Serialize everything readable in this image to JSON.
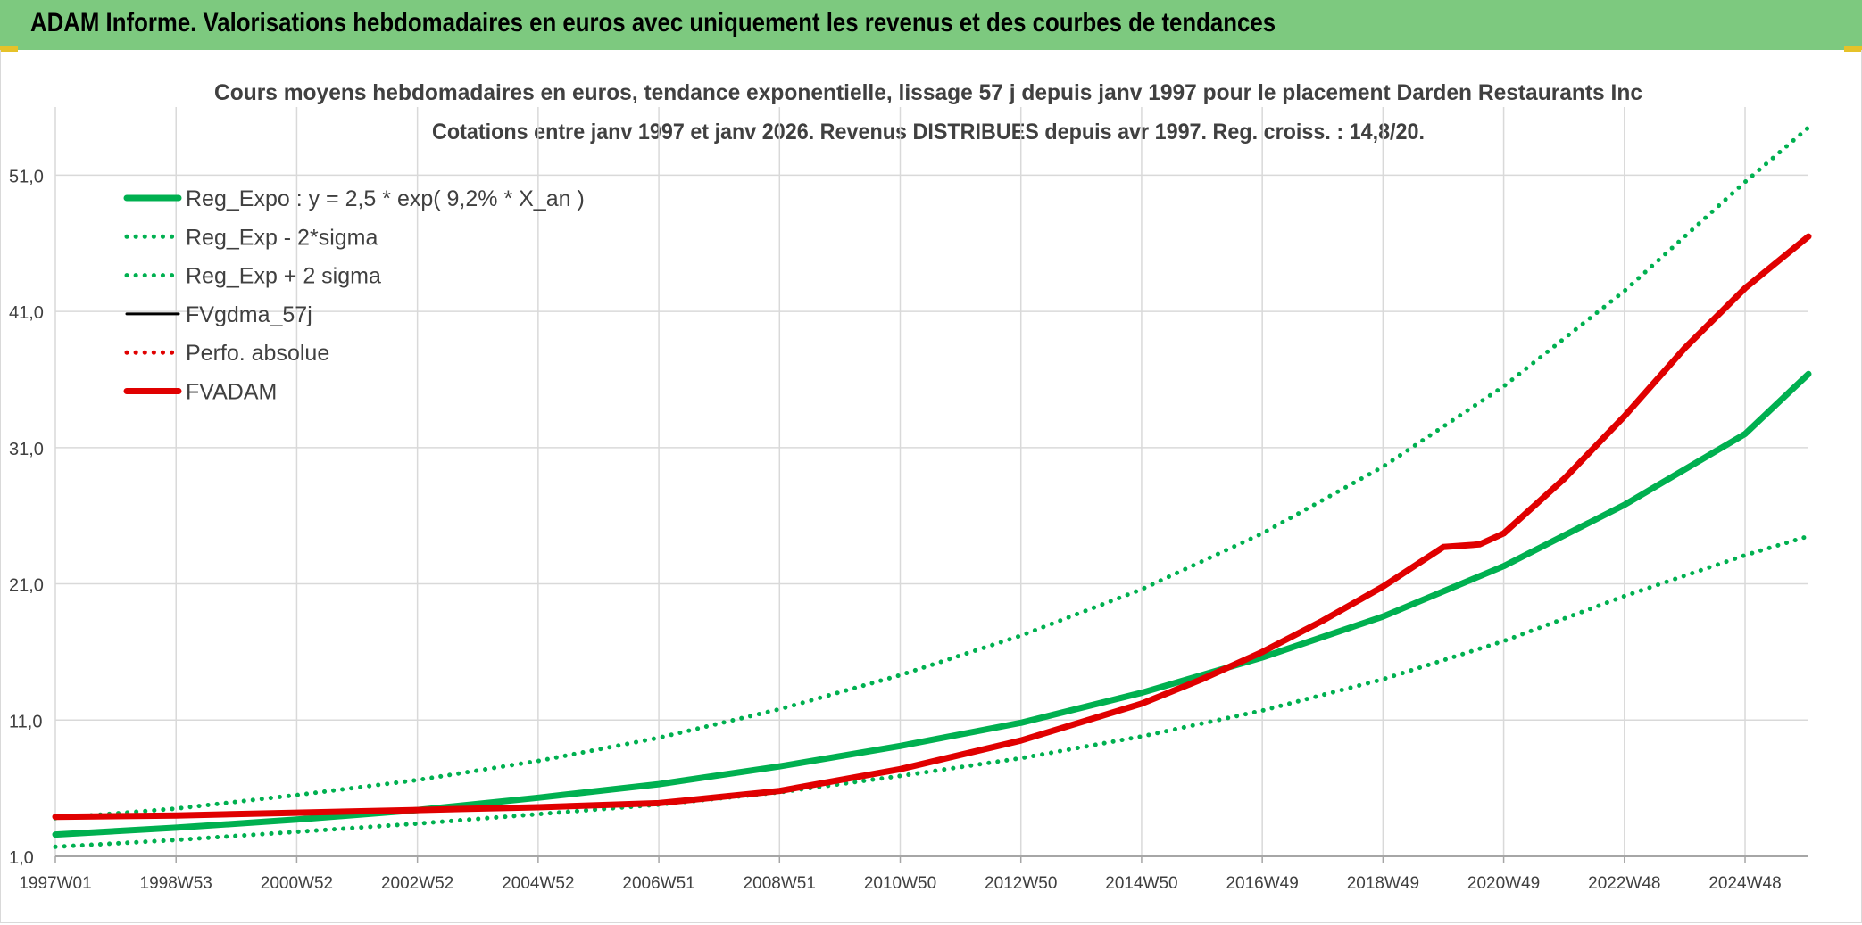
{
  "header": {
    "title": "ADAM Informe. Valorisations hebdomadaires en euros avec uniquement les revenus et des courbes de tendances"
  },
  "colors": {
    "banner": "#7dc97f",
    "reg_expo": "#00b050",
    "fvgdma": "#000000",
    "perf_absolue": "#e00000",
    "fvadam": "#e00000",
    "grid": "#d9d9d9"
  },
  "chart_data": {
    "type": "line",
    "title": "Cours moyens hebdomadaires en euros, tendance exponentielle, lissage 57 j depuis janv 1997 pour le placement Darden Restaurants Inc",
    "subtitle": "Cotations entre janv 1997 et janv 2026. Revenus DISTRIBUES depuis avr 1997. Reg. croiss. : 14,8/20.",
    "xlabel": "",
    "ylabel": "",
    "ylim": [
      1,
      56
    ],
    "xlim": [
      1997.0,
      2026.05
    ],
    "grid": true,
    "legend_position": "top-left",
    "y_ticks": [
      "1,0",
      "11,0",
      "21,0",
      "31,0",
      "41,0",
      "51,0"
    ],
    "y_tick_values": [
      1,
      11,
      21,
      31,
      41,
      51
    ],
    "x_ticks": [
      "1997W01",
      "1998W53",
      "2000W52",
      "2002W52",
      "2004W52",
      "2006W51",
      "2008W51",
      "2010W50",
      "2012W50",
      "2014W50",
      "2016W49",
      "2018W49",
      "2020W49",
      "2022W48",
      "2024W48"
    ],
    "x_tick_years": [
      1997.0,
      1999.0,
      2001.0,
      2003.0,
      2005.0,
      2007.0,
      2009.0,
      2011.0,
      2013.0,
      2015.0,
      2017.0,
      2019.0,
      2021.0,
      2023.0,
      2025.0
    ],
    "series": [
      {
        "name": "Reg_Expo : y = 2,5 * exp( 9,2% *  X_an )",
        "style": "solid-thick",
        "color": "#00b050",
        "x": [
          1997.0,
          1999.0,
          2001.0,
          2003.0,
          2005.0,
          2007.0,
          2009.0,
          2011.0,
          2013.0,
          2015.0,
          2017.0,
          2019.0,
          2021.0,
          2023.0,
          2025.0,
          2026.05
        ],
        "values": [
          2.6,
          3.1,
          3.7,
          4.4,
          5.3,
          6.3,
          7.6,
          9.1,
          10.8,
          13.0,
          15.6,
          18.6,
          22.3,
          26.8,
          32.0,
          36.4
        ]
      },
      {
        "name": "Reg_Exp - 2*sigma",
        "style": "dotted",
        "color": "#00b050",
        "x": [
          1997.0,
          1999.0,
          2001.0,
          2003.0,
          2005.0,
          2007.0,
          2009.0,
          2011.0,
          2013.0,
          2015.0,
          2017.0,
          2019.0,
          2021.0,
          2023.0,
          2025.0,
          2026.05
        ],
        "values": [
          1.7,
          2.2,
          2.8,
          3.4,
          4.1,
          4.8,
          5.7,
          6.9,
          8.2,
          9.8,
          11.7,
          14.0,
          16.8,
          20.1,
          23.1,
          24.5
        ]
      },
      {
        "name": "Reg_Exp + 2 sigma",
        "style": "dotted",
        "color": "#00b050",
        "x": [
          1997.0,
          1999.0,
          2001.0,
          2003.0,
          2005.0,
          2007.0,
          2009.0,
          2011.0,
          2013.0,
          2015.0,
          2017.0,
          2019.0,
          2021.0,
          2023.0,
          2025.0,
          2026.05
        ],
        "values": [
          3.8,
          4.5,
          5.5,
          6.6,
          8.0,
          9.7,
          11.8,
          14.3,
          17.2,
          20.6,
          24.7,
          29.6,
          35.5,
          42.5,
          50.5,
          54.5
        ]
      },
      {
        "name": "FVgdma_57j",
        "style": "solid",
        "color": "#000000",
        "x": [
          1997.0,
          1999.0,
          2001.0,
          2003.0,
          2005.0,
          2007.0,
          2009.0,
          2011.0,
          2013.0,
          2015.0,
          2016.0,
          2017.0,
          2018.0,
          2019.0,
          2020.0,
          2020.6,
          2021.0,
          2022.0,
          2023.0,
          2024.0,
          2025.0,
          2026.05
        ],
        "values": [
          3.9,
          4.0,
          4.2,
          4.4,
          4.6,
          4.9,
          5.8,
          7.4,
          9.5,
          12.2,
          14.0,
          16.0,
          18.3,
          20.8,
          23.7,
          23.9,
          24.7,
          28.7,
          33.3,
          38.3,
          42.7,
          46.5
        ]
      },
      {
        "name": "Perfo. absolue",
        "style": "dotted",
        "color": "#e00000",
        "x": [
          1997.0,
          1999.0,
          2001.0,
          2003.0,
          2005.0,
          2007.0,
          2009.0,
          2011.0,
          2013.0,
          2015.0,
          2016.0,
          2017.0,
          2018.0,
          2019.0,
          2020.0,
          2020.6,
          2021.0,
          2022.0,
          2023.0,
          2024.0,
          2025.0,
          2026.05
        ],
        "values": [
          3.9,
          4.0,
          4.2,
          4.4,
          4.6,
          4.9,
          5.8,
          7.4,
          9.5,
          12.2,
          14.0,
          16.0,
          18.3,
          20.8,
          23.7,
          23.9,
          24.7,
          28.7,
          33.3,
          38.3,
          42.7,
          46.5
        ]
      },
      {
        "name": "FVADAM",
        "style": "solid-thick",
        "color": "#e00000",
        "x": [
          1997.0,
          1999.0,
          2001.0,
          2003.0,
          2005.0,
          2007.0,
          2009.0,
          2011.0,
          2013.0,
          2015.0,
          2016.0,
          2017.0,
          2018.0,
          2019.0,
          2020.0,
          2020.6,
          2021.0,
          2022.0,
          2023.0,
          2024.0,
          2025.0,
          2026.05
        ],
        "values": [
          3.9,
          4.0,
          4.2,
          4.4,
          4.6,
          4.9,
          5.8,
          7.4,
          9.5,
          12.2,
          14.0,
          16.0,
          18.3,
          20.8,
          23.7,
          23.9,
          24.7,
          28.7,
          33.3,
          38.3,
          42.7,
          46.5
        ]
      }
    ]
  }
}
